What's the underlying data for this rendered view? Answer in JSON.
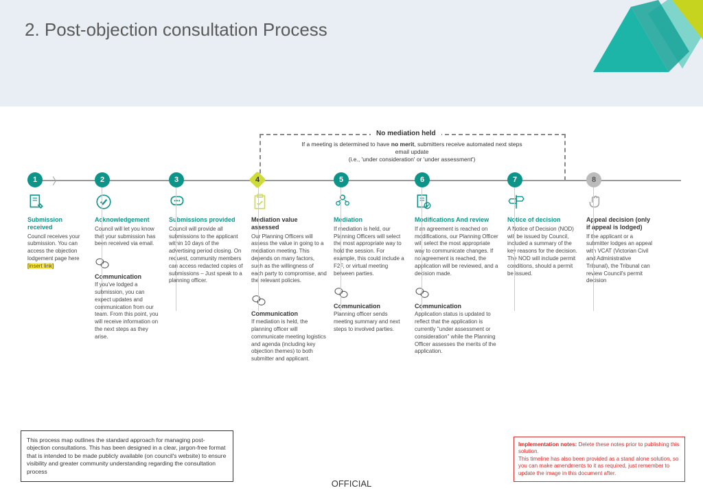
{
  "header": {
    "title": "2. Post-objection consultation Process",
    "bg": "#e8eef3"
  },
  "colors": {
    "teal": "#0d9488",
    "lime": "#cddc39",
    "gray": "#bbb",
    "red": "#d32f2f",
    "yellow": "#ffeb3b",
    "tri_lime": "#c6d420",
    "tri_teal": "#1db5a8",
    "tri_ltteal": "#7fd4cc"
  },
  "no_mediation": {
    "label": "No mediation held",
    "text": "If a meeting is determined to have <b>no merit</b>, submitters receive automated next steps email update<br>(i.e., 'under consideration' or 'under assessment')"
  },
  "steps": [
    {
      "n": "1",
      "node": "teal",
      "title": "Submission received",
      "title_color": "teal",
      "desc": "Council receives your submission. You can access the objection lodgement page here <span class='highlight'>[insert link]</span>",
      "icon": "doc"
    },
    {
      "n": "2",
      "node": "teal",
      "title": "Acknowledgement",
      "title_color": "teal",
      "desc": "Council will let you know that your submission has been received via email.",
      "icon": "check",
      "comm": {
        "title": "Communication",
        "desc": "If you've lodged a submission, you can expect updates and communication from our team. From this point, you will receive information on the next steps as they arise."
      }
    },
    {
      "n": "3",
      "node": "teal",
      "title": "Submissions provided",
      "title_color": "teal",
      "desc": "Council will provide all submissions to the applicant within 10 days of the advertising period closing. On request, community members can access redacted copies of submissions – Just speak to a planning officer.",
      "icon": "chat"
    },
    {
      "n": "4",
      "node": "lime",
      "title": "Mediation value assessed",
      "title_color": "dark",
      "desc": "Our Planning Officers will assess the value in going to a mediation meeting. This depends on many factors, such as the willingness of each party to compromise, and the relevant policies.",
      "icon": "clip",
      "comm": {
        "title": "Communication",
        "desc": "If mediation is held, the planning officer will communicate meeting logistics and agenda (including key objection themes) to both submitter and applicant."
      }
    },
    {
      "n": "5",
      "node": "teal",
      "title": "Mediation",
      "title_color": "teal",
      "desc": "If mediation is held, our Planning Officers will select the most appropriate way to hold the session. For example, this could include a F2F, or virtual meeting between parties.",
      "icon": "people",
      "comm": {
        "title": "Communication",
        "desc": "Planning officer sends meeting summary and next steps to involved parties."
      }
    },
    {
      "n": "6",
      "node": "teal",
      "title": "Modifications And review",
      "title_color": "teal",
      "desc": "If an agreement is reached on modifications, our Planning Officer will select the most appropriate way to communicate changes. If no agreement is reached, the application will be reviewed, and a decision made.",
      "icon": "docck",
      "comm": {
        "title": "Communication",
        "desc": "Application status is updated to reflect that the application is currently \"under assessment or consideration\" while the Planning Officer assesses the merits of the application."
      }
    },
    {
      "n": "7",
      "node": "teal",
      "title": "Notice of decision",
      "title_color": "teal",
      "desc": "A Notice of Decision (NOD) will be issued by Council, included a summary of the key reasons for the decision. The NOD will include permit conditions, should a permit be issued.",
      "icon": "sign"
    },
    {
      "n": "8",
      "node": "gray",
      "title": "Appeal decision (only if appeal is lodged)",
      "title_color": "dark",
      "desc": "If the applicant or a submitter lodges an appeal with VCAT (Victorian Civil and Administrative Tribunal), the Tribunal can review Council's permit decision",
      "icon": "hand"
    }
  ],
  "footer_left": "This process map outlines the standard approach for managing post-objection consultations. This has been designed in a clear, jargon-free format that is intended to be made publicly available (on council's website) to ensure visibility and greater community understanding regarding the consultation process",
  "footer_right": "<b>Implementation notes:</b> Delete these notes prior to publishing this solution.<br>This timeline has also been provided as a stand alone solution, so you can make amendments to it as required, just remember to update the image in this document after.",
  "official": "OFFICIAL"
}
